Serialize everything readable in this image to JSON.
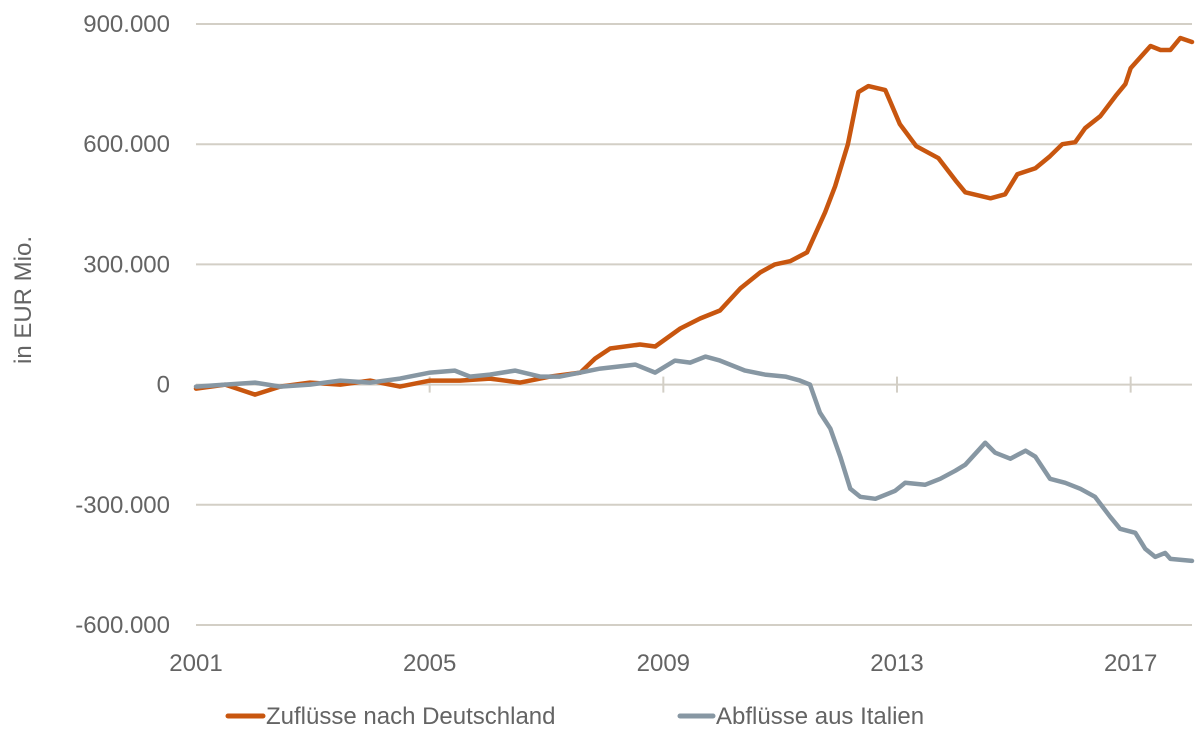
{
  "chart_data": {
    "type": "line",
    "title": "",
    "xlabel": "",
    "ylabel": "in EUR Mio.",
    "xlim": [
      2001,
      2018.05
    ],
    "ylim": [
      -600000,
      900000
    ],
    "x_ticks": [
      2001,
      2005,
      2009,
      2013,
      2017
    ],
    "x_tick_labels": [
      "2001",
      "2005",
      "2009",
      "2013",
      "2017"
    ],
    "y_ticks": [
      900000,
      600000,
      300000,
      0,
      -300000,
      -600000
    ],
    "y_tick_labels": [
      "900.000",
      "600.000",
      "300.000",
      "0",
      "-300.000",
      "-600.000"
    ],
    "grid": "horizontal",
    "legend_position": "bottom",
    "series": [
      {
        "name": "Zuflüsse nach Deutschland",
        "color": "#c8560f",
        "x": [
          2001.0,
          2001.5,
          2002.01,
          2002.44,
          2002.95,
          2003.47,
          2003.98,
          2004.49,
          2005.01,
          2005.52,
          2006.03,
          2006.55,
          2007.06,
          2007.58,
          2007.83,
          2008.09,
          2008.6,
          2008.86,
          2009.29,
          2009.63,
          2009.97,
          2010.32,
          2010.66,
          2010.91,
          2011.17,
          2011.46,
          2011.77,
          2011.94,
          2012.16,
          2012.34,
          2012.51,
          2012.8,
          2013.05,
          2013.33,
          2013.71,
          2014.0,
          2014.17,
          2014.6,
          2014.85,
          2015.06,
          2015.37,
          2015.62,
          2015.83,
          2016.05,
          2016.22,
          2016.48,
          2016.74,
          2016.91,
          2017.0,
          2017.34,
          2017.51,
          2017.68,
          2017.85,
          2018.05
        ],
        "values": [
          -10000,
          0,
          -25000,
          -5000,
          5000,
          0,
          10000,
          -5000,
          10000,
          10000,
          15000,
          5000,
          20000,
          30000,
          65000,
          90000,
          100000,
          95000,
          140000,
          165000,
          185000,
          240000,
          280000,
          300000,
          308000,
          330000,
          430000,
          495000,
          600000,
          730000,
          745000,
          735000,
          650000,
          595000,
          565000,
          510000,
          480000,
          465000,
          475000,
          525000,
          540000,
          570000,
          600000,
          605000,
          640000,
          670000,
          720000,
          750000,
          790000,
          845000,
          835000,
          835000,
          865000,
          855000
        ]
      },
      {
        "name": "Abflüsse aus Italien",
        "color": "#8797a3",
        "x": [
          2001.0,
          2001.5,
          2002.01,
          2002.44,
          2002.95,
          2003.47,
          2003.98,
          2004.49,
          2004.66,
          2005.01,
          2005.43,
          2005.69,
          2006.03,
          2006.46,
          2006.89,
          2007.23,
          2007.58,
          2007.92,
          2008.52,
          2008.86,
          2009.2,
          2009.46,
          2009.72,
          2009.97,
          2010.4,
          2010.74,
          2011.09,
          2011.34,
          2011.51,
          2011.68,
          2011.86,
          2012.03,
          2012.2,
          2012.37,
          2012.63,
          2012.97,
          2013.14,
          2013.48,
          2013.74,
          2014.0,
          2014.17,
          2014.42,
          2014.51,
          2014.68,
          2014.94,
          2015.2,
          2015.37,
          2015.62,
          2015.88,
          2016.14,
          2016.39,
          2016.65,
          2016.82,
          2017.08,
          2017.25,
          2017.42,
          2017.59,
          2017.68,
          2018.05
        ],
        "values": [
          -5000,
          0,
          5000,
          -5000,
          0,
          10000,
          5000,
          15000,
          20000,
          30000,
          35000,
          20000,
          25000,
          35000,
          20000,
          20000,
          30000,
          40000,
          50000,
          30000,
          60000,
          55000,
          70000,
          60000,
          35000,
          25000,
          20000,
          10000,
          0,
          -70000,
          -110000,
          -180000,
          -260000,
          -280000,
          -285000,
          -265000,
          -245000,
          -250000,
          -235000,
          -215000,
          -200000,
          -160000,
          -145000,
          -170000,
          -185000,
          -165000,
          -180000,
          -235000,
          -245000,
          -260000,
          -280000,
          -330000,
          -360000,
          -370000,
          -410000,
          -430000,
          -420000,
          -435000,
          -440000
        ]
      }
    ]
  }
}
